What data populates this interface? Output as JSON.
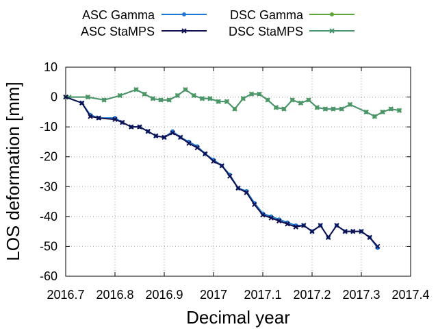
{
  "chart_data": {
    "type": "line",
    "title": "",
    "xlabel": "Decimal year",
    "ylabel": "LOS deformation [mm]",
    "xlim": [
      2016.7,
      2017.4
    ],
    "ylim": [
      -60,
      10
    ],
    "x_ticks": [
      2016.7,
      2016.8,
      2016.9,
      2017.0,
      2017.1,
      2017.2,
      2017.3,
      2017.4
    ],
    "x_tick_labels": [
      "2016.7",
      "2016.8",
      "2016.9",
      "2017",
      "2017.1",
      "2017.2",
      "2017.3",
      "2017.4"
    ],
    "y_ticks": [
      10,
      0,
      -10,
      -20,
      -30,
      -40,
      -50,
      -60
    ],
    "y_tick_labels": [
      "10",
      "0",
      "-10",
      "-20",
      "-30",
      "-40",
      "-50",
      "-60"
    ],
    "grid": true,
    "legend": "top, two columns",
    "series": [
      {
        "name": "ASC Gamma",
        "color": "#1f77d4",
        "marker": "circle",
        "x": [
          2016.7,
          2016.733,
          2016.75,
          2016.767,
          2016.8,
          2016.815,
          2016.833,
          2016.85,
          2016.867,
          2016.883,
          2016.9,
          2016.917,
          2016.933,
          2016.95,
          2016.967,
          2016.983,
          2017.0,
          2017.017,
          2017.033,
          2017.05,
          2017.067,
          2017.083,
          2017.1,
          2017.117,
          2017.133,
          2017.15,
          2017.167,
          2017.183,
          2017.2,
          2017.217,
          2017.233,
          2017.25,
          2017.267,
          2017.283,
          2017.3,
          2017.317,
          2017.333
        ],
        "y": [
          0,
          -2,
          -6,
          -7,
          -7,
          -8.5,
          -10,
          -10,
          -11.5,
          -13,
          -13.5,
          -11.5,
          -13.5,
          -15,
          -16.5,
          -19,
          -21,
          -23,
          -26,
          -30.5,
          -31.5,
          -35.5,
          -39,
          -40,
          -41,
          -42,
          -43,
          -43,
          -45,
          -43,
          -47,
          -43,
          -45,
          -45,
          -45,
          -47,
          -50.5
        ]
      },
      {
        "name": "ASC StaMPS",
        "color": "#101050",
        "marker": "x",
        "x": [
          2016.7,
          2016.733,
          2016.75,
          2016.767,
          2016.8,
          2016.815,
          2016.833,
          2016.85,
          2016.867,
          2016.883,
          2016.9,
          2016.917,
          2016.933,
          2016.95,
          2016.967,
          2016.983,
          2017.0,
          2017.017,
          2017.033,
          2017.05,
          2017.067,
          2017.083,
          2017.1,
          2017.117,
          2017.133,
          2017.15,
          2017.167,
          2017.183,
          2017.2,
          2017.217,
          2017.233,
          2017.25,
          2017.267,
          2017.283,
          2017.3,
          2017.317,
          2017.333
        ],
        "y": [
          0,
          -2,
          -6.5,
          -7,
          -7.5,
          -8.5,
          -10,
          -10,
          -11.5,
          -13,
          -13.5,
          -12,
          -13.5,
          -15.5,
          -17,
          -19,
          -21.5,
          -23,
          -26.5,
          -30.5,
          -32,
          -36,
          -39.5,
          -40.5,
          -41.5,
          -42.5,
          -43.5,
          -43,
          -45,
          -43,
          -47,
          -43,
          -45,
          -45,
          -45,
          -47,
          -50
        ]
      },
      {
        "name": "DSC Gamma",
        "color": "#5fa63a",
        "marker": "circle",
        "x": [
          2016.7,
          2016.745,
          2016.778,
          2016.81,
          2016.843,
          2016.86,
          2016.877,
          2016.893,
          2016.91,
          2016.927,
          2016.943,
          2016.96,
          2016.977,
          2016.993,
          2017.01,
          2017.027,
          2017.043,
          2017.06,
          2017.077,
          2017.093,
          2017.11,
          2017.127,
          2017.143,
          2017.16,
          2017.177,
          2017.193,
          2017.21,
          2017.227,
          2017.243,
          2017.26,
          2017.277,
          2017.31,
          2017.327,
          2017.343,
          2017.36,
          2017.377
        ],
        "y": [
          0,
          0,
          -1,
          0.5,
          2.5,
          1,
          -0.5,
          -1,
          -1,
          0.5,
          2.5,
          0.5,
          -0.5,
          -0.5,
          -1.5,
          -1.5,
          -4,
          -0.5,
          1,
          1,
          -1,
          -3.5,
          -4,
          -1,
          -2,
          -1,
          -3.5,
          -4,
          -4,
          -4,
          -2.5,
          -5,
          -6.5,
          -5,
          -4,
          -4.5
        ]
      },
      {
        "name": "DSC StaMPS",
        "color": "#4a9470",
        "marker": "x",
        "x": [
          2016.707,
          2016.745,
          2016.778,
          2016.81,
          2016.843,
          2016.86,
          2016.877,
          2016.893,
          2016.91,
          2016.927,
          2016.943,
          2016.96,
          2016.977,
          2016.993,
          2017.01,
          2017.027,
          2017.043,
          2017.06,
          2017.077,
          2017.093,
          2017.11,
          2017.127,
          2017.143,
          2017.16,
          2017.177,
          2017.193,
          2017.21,
          2017.227,
          2017.243,
          2017.26,
          2017.277,
          2017.31,
          2017.327,
          2017.343,
          2017.36,
          2017.377
        ],
        "y": [
          0,
          0,
          -1,
          0.5,
          2.5,
          1,
          -0.5,
          -1,
          -1,
          0.5,
          2.5,
          0.5,
          -0.5,
          -0.5,
          -1.5,
          -1.5,
          -4,
          -0.5,
          1,
          1,
          -1,
          -3.5,
          -4,
          -1,
          -2,
          -1,
          -3.5,
          -4,
          -4,
          -4,
          -2.5,
          -5,
          -6.5,
          -5,
          -4,
          -4.5
        ]
      }
    ]
  }
}
